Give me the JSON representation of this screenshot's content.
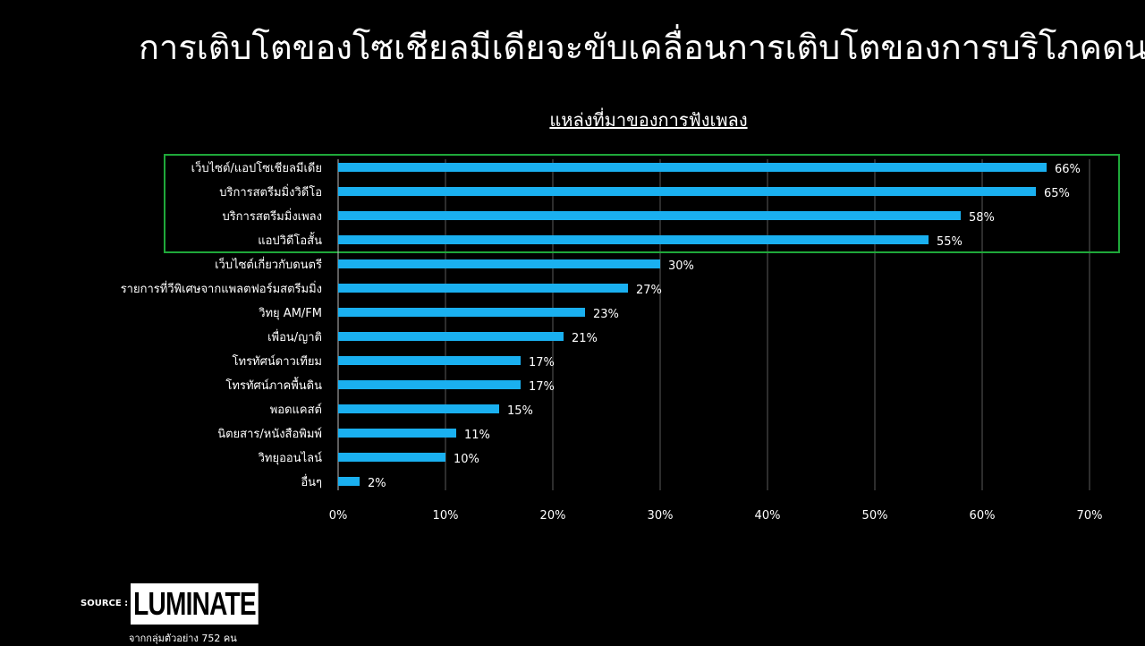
{
  "slide_title": "การเติบโตของโซเชียลมีเดียจะขับเคลื่อนการเติบโตของการบริโภคดนตรี",
  "source": {
    "label": "SOURCE :",
    "logo_text": "LUMINATE",
    "sample_note": "จากกลุ่มตัวอย่าง 752 คน"
  },
  "colors": {
    "background": "#000000",
    "bar": "#1ab0f0",
    "highlight_box": "#1fa83a",
    "gridline": "#5a5a5a",
    "text": "#ffffff"
  },
  "chart_data": {
    "type": "bar",
    "orientation": "horizontal",
    "title": "แหล่งที่มาของการฟังเพลง",
    "categories": [
      "เว็บไซต์/แอปโซเชียลมีเดีย",
      "บริการสตรีมมิ่งวิดีโอ",
      "บริการสตรีมมิ่งเพลง",
      "แอปวิดีโอสั้น",
      "เว็บไซต์เกี่ยวกับดนตรี",
      "รายการที่วีพิเศษจากแพลตฟอร์มสตรีมมิ่ง",
      "วิทยุ AM/FM",
      "เพื่อน/ญาติ",
      "โทรทัศน์ดาวเทียม",
      "โทรทัศน์ภาคพื้นดิน",
      "พอดแคสต์",
      "นิตยสาร/หนังสือพิมพ์",
      "วิทยุออนไลน์",
      "อื่นๆ"
    ],
    "values": [
      66,
      65,
      58,
      55,
      30,
      27,
      23,
      21,
      17,
      17,
      15,
      11,
      10,
      2
    ],
    "value_labels": [
      "66%",
      "65%",
      "58%",
      "55%",
      "30%",
      "27%",
      "23%",
      "21%",
      "17%",
      "17%",
      "15%",
      "11%",
      "10%",
      "2%"
    ],
    "xlim": [
      0,
      70
    ],
    "xticks": [
      "0%",
      "10%",
      "20%",
      "30%",
      "40%",
      "50%",
      "60%",
      "70%"
    ],
    "grid": "vertical",
    "highlighted_categories": [
      0,
      1,
      2,
      3
    ]
  }
}
